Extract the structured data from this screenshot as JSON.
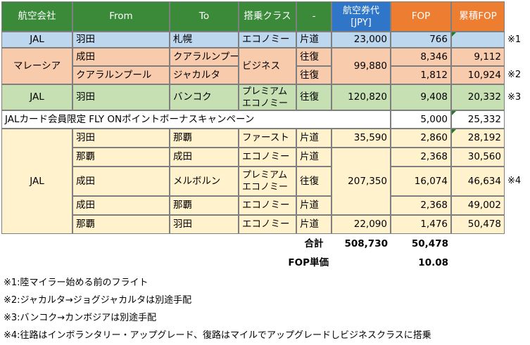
{
  "colors": {
    "header_green": "#3a8a3a",
    "header_blue": "#2f75c8",
    "header_orange": "#ed7d31",
    "row_blue": "#bdd7ee",
    "row_salmon": "#f8cbad",
    "row_green": "#c6e0b4",
    "row_cream": "#fff2cc",
    "gridline": "#7f7f7f"
  },
  "header": {
    "airline": "航空会社",
    "from": "From",
    "to": "To",
    "class": "搭乗クラス",
    "trip": "-",
    "fare": "航空券代\n[JPY]",
    "fop": "FOP",
    "cum_fop": "累積FOP"
  },
  "rows": {
    "r1": {
      "airline": "JAL",
      "from": "羽田",
      "to": "札幌",
      "class": "エコノミー",
      "trip": "片道",
      "fare": "23,000",
      "fop": "766",
      "cum": "",
      "note": "※1"
    },
    "r2": {
      "airline": "マレーシア",
      "from": "成田",
      "to": "クアラルンプール",
      "class": "ビジネス",
      "trip": "往復",
      "fare": "99,880",
      "fop": "8,346",
      "cum": "9,112",
      "note": ""
    },
    "r3": {
      "from": "クアラルンプール",
      "to": "ジャカルタ",
      "trip": "往復",
      "fop": "1,812",
      "cum": "10,924",
      "note": "※2"
    },
    "r4": {
      "airline": "JAL",
      "from": "羽田",
      "to": "バンコク",
      "class": "プレミアムエコノミー",
      "trip": "往復",
      "fare": "120,820",
      "fop": "9,408",
      "cum": "20,332",
      "note": "※3"
    },
    "r5": {
      "label": "JALカード会員限定 FLY ONポイントボーナスキャンペーン",
      "fop": "5,000",
      "cum": "25,332"
    },
    "r6": {
      "airline": "JAL",
      "from": "羽田",
      "to": "那覇",
      "class": "ファースト",
      "trip": "片道",
      "fare": "35,590",
      "fop": "2,860",
      "cum": "28,192"
    },
    "r7": {
      "from": "那覇",
      "to": "成田",
      "class": "エコノミー",
      "trip": "片道",
      "fop": "2,368",
      "cum": "30,560"
    },
    "r8": {
      "from": "成田",
      "to": "メルボルン",
      "class": "プレミアムエコノミー",
      "trip": "往復",
      "fare": "207,350",
      "fop": "16,074",
      "cum": "46,634",
      "note": "※4"
    },
    "r9": {
      "from": "成田",
      "to": "那覇",
      "class": "エコノミー",
      "trip": "片道",
      "fop": "2,368",
      "cum": "49,002"
    },
    "r10": {
      "from": "那覇",
      "to": "羽田",
      "class": "エコノミー",
      "trip": "片道",
      "fare": "22,090",
      "fop": "1,476",
      "cum": "50,478"
    }
  },
  "totals": {
    "total_label": "合計",
    "total_fare": "508,730",
    "total_fop": "50,478",
    "unit_label": "FOP単価",
    "unit_value": "10.08"
  },
  "notes": [
    "※1:陸マイラー始める前のフライト",
    "※2:ジャカルタ→ジョグジャカルタは別途手配",
    "※3:バンコク→カンボジアは別途手配",
    "※4:往路はインボランタリー・アップグレード、復路はマイルでアップグレードしビジネスクラスに搭乗"
  ]
}
